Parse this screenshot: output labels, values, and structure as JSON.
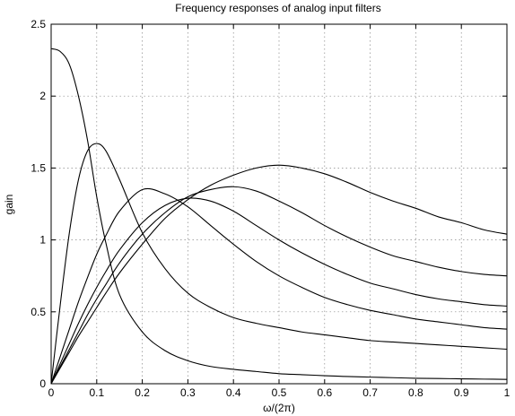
{
  "chart_data": {
    "type": "line",
    "title": "Frequency responses of  analog input filters",
    "xlabel": "ω/(2π)",
    "ylabel": "gain",
    "xlim": [
      0,
      1
    ],
    "ylim": [
      0,
      2.5
    ],
    "grid": true,
    "x_ticks": [
      "0",
      "0.1",
      "0.2",
      "0.3",
      "0.4",
      "0.5",
      "0.6",
      "0.7",
      "0.8",
      "0.9",
      "1"
    ],
    "y_ticks": [
      "0",
      "0.5",
      "1",
      "1.5",
      "2",
      "2.5"
    ],
    "x": [
      0,
      0.02,
      0.04,
      0.06,
      0.08,
      0.1,
      0.12,
      0.15,
      0.2,
      0.25,
      0.3,
      0.35,
      0.4,
      0.45,
      0.5,
      0.55,
      0.6,
      0.65,
      0.7,
      0.75,
      0.8,
      0.85,
      0.9,
      0.95,
      1.0
    ],
    "series": [
      {
        "values": [
          2.33,
          2.31,
          2.22,
          2.0,
          1.69,
          1.3,
          0.98,
          0.62,
          0.36,
          0.23,
          0.16,
          0.12,
          0.1,
          0.085,
          0.07,
          0.063,
          0.056,
          0.05,
          0.046,
          0.042,
          0.038,
          0.036,
          0.034,
          0.032,
          0.03
        ]
      },
      {
        "values": [
          0,
          0.55,
          1.05,
          1.42,
          1.62,
          1.67,
          1.62,
          1.42,
          1.05,
          0.8,
          0.63,
          0.53,
          0.46,
          0.42,
          0.39,
          0.36,
          0.34,
          0.32,
          0.3,
          0.29,
          0.28,
          0.27,
          0.26,
          0.25,
          0.24
        ]
      },
      {
        "values": [
          0,
          0.19,
          0.38,
          0.57,
          0.74,
          0.9,
          1.03,
          1.2,
          1.35,
          1.32,
          1.23,
          1.1,
          0.97,
          0.85,
          0.75,
          0.67,
          0.6,
          0.55,
          0.51,
          0.48,
          0.45,
          0.43,
          0.41,
          0.39,
          0.38
        ]
      },
      {
        "values": [
          0,
          0.14,
          0.28,
          0.42,
          0.55,
          0.67,
          0.78,
          0.93,
          1.12,
          1.24,
          1.29,
          1.27,
          1.2,
          1.1,
          1.0,
          0.91,
          0.83,
          0.76,
          0.7,
          0.66,
          0.62,
          0.59,
          0.57,
          0.55,
          0.54
        ]
      },
      {
        "values": [
          0,
          0.12,
          0.24,
          0.36,
          0.48,
          0.59,
          0.69,
          0.84,
          1.04,
          1.19,
          1.3,
          1.35,
          1.37,
          1.34,
          1.27,
          1.19,
          1.1,
          1.02,
          0.95,
          0.89,
          0.85,
          0.81,
          0.78,
          0.76,
          0.75
        ]
      },
      {
        "values": [
          0,
          0.11,
          0.22,
          0.33,
          0.43,
          0.53,
          0.63,
          0.77,
          0.97,
          1.15,
          1.28,
          1.38,
          1.45,
          1.5,
          1.52,
          1.5,
          1.46,
          1.4,
          1.33,
          1.27,
          1.22,
          1.16,
          1.12,
          1.07,
          1.04
        ]
      }
    ]
  }
}
